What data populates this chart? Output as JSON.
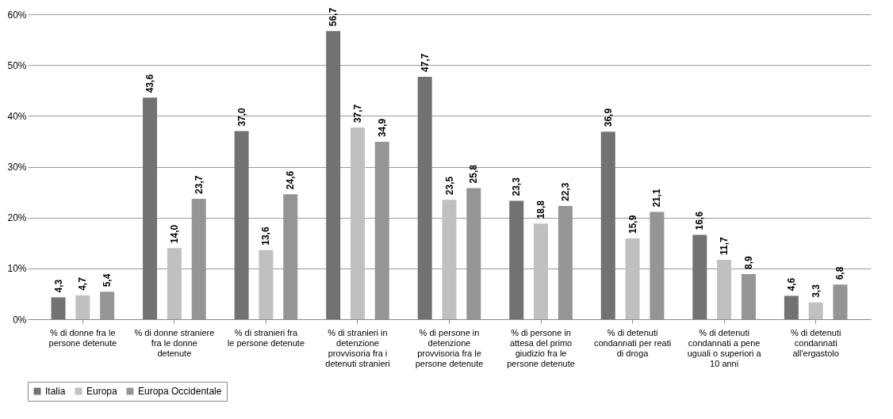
{
  "chart_data": {
    "type": "bar",
    "categories": [
      "% di donne fra le persone detenute",
      "% di donne straniere fra le donne detenute",
      "% di stranieri fra le persone detenute",
      "% di stranieri in detenzione provvisoria fra i detenuti stranieri",
      "% di persone in detenzione provvisoria fra le persone detenute",
      "% di persone in attesa del primo giudizio fra le persone detenute",
      "% di detenuti condannati per reati di droga",
      "% di detenuti condannati a pene uguali o superiori a 10 anni",
      "% di detenuti condannati all'ergastolo"
    ],
    "series": [
      {
        "name": "Italia",
        "color": "#727272",
        "values": [
          4.3,
          43.6,
          37.0,
          56.7,
          47.7,
          23.3,
          36.9,
          16.6,
          4.6
        ],
        "value_labels": [
          "4,3",
          "43,6",
          "37,0",
          "56,7",
          "47,7",
          "23,3",
          "36,9",
          "16,6",
          "4,6"
        ]
      },
      {
        "name": "Europa",
        "color": "#c0c0c0",
        "values": [
          4.7,
          14.0,
          13.6,
          37.7,
          23.5,
          18.8,
          15.9,
          11.7,
          3.3
        ],
        "value_labels": [
          "4,7",
          "14,0",
          "13,6",
          "37,7",
          "23,5",
          "18,8",
          "15,9",
          "11,7",
          "3,3"
        ]
      },
      {
        "name": "Europa Occidentale",
        "color": "#959595",
        "values": [
          5.4,
          23.7,
          24.6,
          34.9,
          25.8,
          22.3,
          21.1,
          8.9,
          6.8
        ],
        "value_labels": [
          "5,4",
          "23,7",
          "24,6",
          "34,9",
          "25,8",
          "22,3",
          "21,1",
          "8,9",
          "6,8"
        ]
      }
    ],
    "ylim": [
      0,
      60
    ],
    "yticks": [
      {
        "value": 0,
        "label": "0%"
      },
      {
        "value": 10,
        "label": "10%"
      },
      {
        "value": 20,
        "label": "20%"
      },
      {
        "value": 30,
        "label": "30%"
      },
      {
        "value": 40,
        "label": "40%"
      },
      {
        "value": 50,
        "label": "50%"
      },
      {
        "value": 60,
        "label": "60%"
      }
    ],
    "grid": "y",
    "legend": "bottom"
  }
}
